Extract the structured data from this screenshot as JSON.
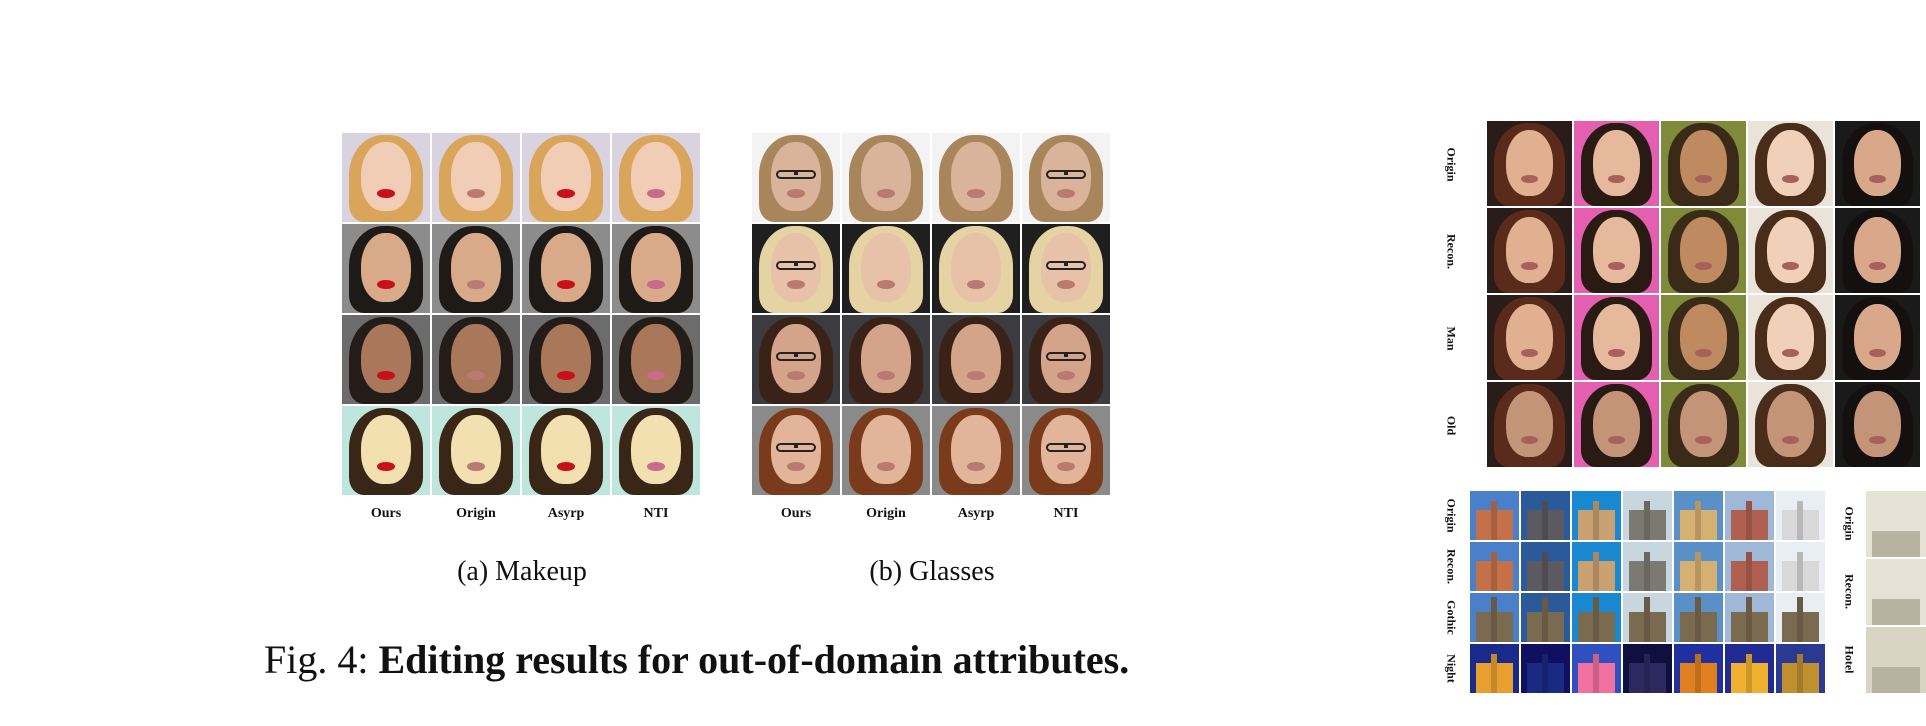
{
  "panel_a": {
    "columns": [
      "Ours",
      "Origin",
      "Asyrp",
      "NTI"
    ],
    "caption_label": "(a)",
    "caption_text": "Makeup",
    "rows": [
      {
        "bg": "#d9d3df",
        "hair": "#d9a55a",
        "skin": "#f1cdb6"
      },
      {
        "bg": "#8c8c8c",
        "hair": "#1e1a18",
        "skin": "#d9aa8a"
      },
      {
        "bg": "#6c6c6c",
        "hair": "#231c19",
        "skin": "#a9775a"
      },
      {
        "bg": "#bfe6dd",
        "hair": "#3a2616",
        "skin": "#f3e0b0"
      }
    ]
  },
  "panel_b": {
    "columns": [
      "Ours",
      "Origin",
      "Asyrp",
      "NTI"
    ],
    "caption_label": "(b)",
    "caption_text": "Glasses",
    "rows": [
      {
        "bg": "#f3f3f3",
        "hair": "#a9855c",
        "skin": "#d9b39a"
      },
      {
        "bg": "#1f1f1f",
        "hair": "#e6d3a4",
        "skin": "#e8c2a8"
      },
      {
        "bg": "#3c3c40",
        "hair": "#3a2218",
        "skin": "#d4a48a"
      },
      {
        "bg": "#8a8a8a",
        "hair": "#7a3a1c",
        "skin": "#e2b49a"
      }
    ]
  },
  "figure": {
    "label": "Fig. 4:",
    "title": "Editing results for out-of-domain attributes."
  },
  "right_faces": {
    "row_labels": [
      "Origin",
      "Recon.",
      "Man",
      "Old"
    ],
    "backgrounds": [
      "#2a1c18",
      "#e55fb0",
      "#7f8a3a",
      "#e9e3d9",
      "#1a1a1a"
    ],
    "hair": [
      "#5a2a1a",
      "#2a1a14",
      "#3a2a18",
      "#4a2c1a",
      "#151010"
    ],
    "skin": [
      "#e0b090",
      "#e6b89c",
      "#c08a60",
      "#f0d0b8",
      "#d9a88a"
    ]
  },
  "right_buildings": {
    "row_labels": [
      "Origin",
      "Recon.",
      "Gothic",
      "Night"
    ],
    "day_colors": [
      "#c4714a",
      "#5a5a60",
      "#c9a070",
      "#7a7a70",
      "#d6b070",
      "#b06050",
      "#d8d8d8"
    ],
    "sky_colors": [
      "#4a7fc9",
      "#2a5a9a",
      "#1a88d0",
      "#c8d6e0",
      "#5a90c8",
      "#a0b8d8",
      "#e8eef4"
    ],
    "night_colors": [
      "#e7a030",
      "#1a2a80",
      "#f070a0",
      "#2a2a60",
      "#e08020",
      "#f0b030",
      "#c09030"
    ],
    "night_sky": [
      "#1a2a8a",
      "#101060",
      "#3050c0",
      "#101040",
      "#2030a0",
      "#202a90",
      "#2a3a90"
    ]
  },
  "right_rooms": {
    "row_labels": [
      "Origin",
      "Recon.",
      "Hotel"
    ]
  }
}
